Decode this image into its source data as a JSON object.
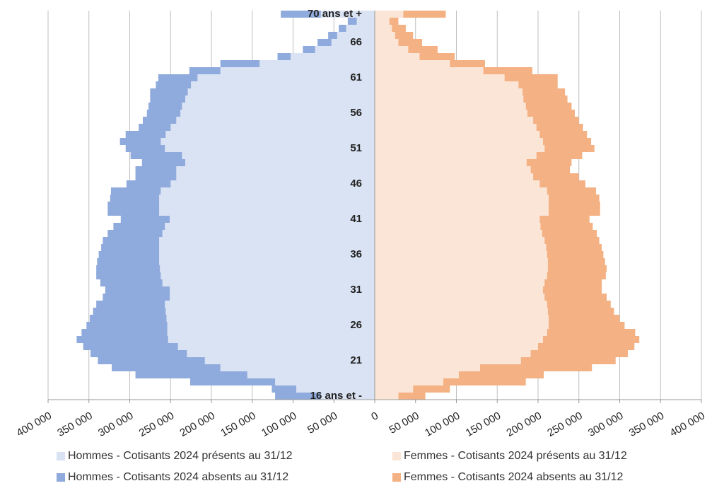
{
  "chart_data": {
    "type": "pyramid",
    "categories": [
      "16 ans et -",
      null,
      null,
      null,
      null,
      "21",
      null,
      null,
      null,
      null,
      "26",
      null,
      null,
      null,
      null,
      "31",
      null,
      null,
      null,
      null,
      "36",
      null,
      null,
      null,
      null,
      "41",
      null,
      null,
      null,
      null,
      "46",
      null,
      null,
      null,
      null,
      "51",
      null,
      null,
      null,
      null,
      "56",
      null,
      null,
      null,
      null,
      "61",
      null,
      null,
      null,
      null,
      "66",
      null,
      null,
      null,
      "70 ans et +"
    ],
    "series": [
      {
        "name": "Hommes - Cotisants 2024 présents au 31/12",
        "color": "#dae3f3",
        "values": [
          66000,
          96000,
          122000,
          156000,
          189000,
          208000,
          230000,
          241000,
          253000,
          254000,
          254000,
          255000,
          256000,
          257000,
          251000,
          251000,
          260000,
          262000,
          263000,
          264000,
          264000,
          264000,
          264000,
          260000,
          257000,
          251000,
          264000,
          264000,
          264000,
          262000,
          250000,
          243000,
          243000,
          232000,
          236000,
          257000,
          262000,
          256000,
          250000,
          243000,
          238000,
          236000,
          232000,
          229000,
          225000,
          217000,
          189000,
          141000,
          103000,
          73000,
          53000,
          46000,
          35000,
          22000,
          66000
        ]
      },
      {
        "name": "Hommes - Cotisants 2024 absents au 31/12",
        "color": "#8faadc",
        "values": [
          56000,
          30000,
          104000,
          137000,
          133000,
          131000,
          118000,
          116000,
          112000,
          105000,
          99000,
          94000,
          89000,
          84000,
          82000,
          79000,
          76000,
          79000,
          78000,
          76000,
          74000,
          71000,
          69000,
          67000,
          63000,
          60000,
          63000,
          63000,
          60000,
          61000,
          54000,
          50000,
          50000,
          53000,
          63000,
          48000,
          50000,
          49000,
          39000,
          41000,
          41000,
          41000,
          43000,
          46000,
          43000,
          48000,
          38000,
          48000,
          16000,
          15000,
          17000,
          11000,
          9000,
          11000,
          49000
        ]
      },
      {
        "name": "Femmes - Cotisants 2024 présents au 31/12",
        "color": "#fbe5d6",
        "values": [
          29000,
          47000,
          84000,
          103000,
          129000,
          179000,
          191000,
          200000,
          206000,
          211000,
          213000,
          213000,
          212000,
          211000,
          208000,
          206000,
          208000,
          211000,
          212000,
          212000,
          211000,
          210000,
          208000,
          205000,
          203000,
          202000,
          213000,
          213000,
          213000,
          211000,
          202000,
          194000,
          191000,
          186000,
          198000,
          208000,
          206000,
          202000,
          198000,
          194000,
          187000,
          185000,
          182000,
          181000,
          176000,
          159000,
          133000,
          92000,
          55000,
          41000,
          29000,
          25000,
          21000,
          18000,
          35000
        ]
      },
      {
        "name": "Femmes - Cotisants 2024 absents au 31/12",
        "color": "#f4b183",
        "values": [
          33000,
          45000,
          101000,
          104000,
          137000,
          116000,
          119000,
          118000,
          118000,
          108000,
          93000,
          87000,
          81000,
          78000,
          76000,
          72000,
          70000,
          72000,
          72000,
          70000,
          69000,
          68000,
          67000,
          67000,
          64000,
          61000,
          63000,
          63000,
          62000,
          60000,
          56000,
          56000,
          48000,
          55000,
          56000,
          61000,
          59000,
          58000,
          57000,
          56000,
          58000,
          56000,
          54000,
          52000,
          48000,
          65000,
          60000,
          43000,
          43000,
          36000,
          29000,
          22000,
          17000,
          11000,
          52000
        ]
      }
    ],
    "xlim": [
      -400000,
      400000
    ],
    "xticks": [
      {
        "value": -400000,
        "label": "400 000"
      },
      {
        "value": -350000,
        "label": "350 000"
      },
      {
        "value": -300000,
        "label": "300 000"
      },
      {
        "value": -250000,
        "label": "250 000"
      },
      {
        "value": -200000,
        "label": "200 000"
      },
      {
        "value": -150000,
        "label": "150 000"
      },
      {
        "value": -100000,
        "label": "100 000"
      },
      {
        "value": -50000,
        "label": "50 000"
      },
      0,
      {
        "value": 50000,
        "label": "50 000"
      },
      {
        "value": 100000,
        "label": "100 000"
      },
      {
        "value": 150000,
        "label": "150 000"
      },
      {
        "value": 200000,
        "label": "200 000"
      },
      {
        "value": 250000,
        "label": "250 000"
      },
      {
        "value": 300000,
        "label": "300 000"
      },
      {
        "value": 350000,
        "label": "350 000"
      },
      {
        "value": 400000,
        "label": "400 000"
      }
    ],
    "grid": true,
    "legend": "bottom"
  }
}
